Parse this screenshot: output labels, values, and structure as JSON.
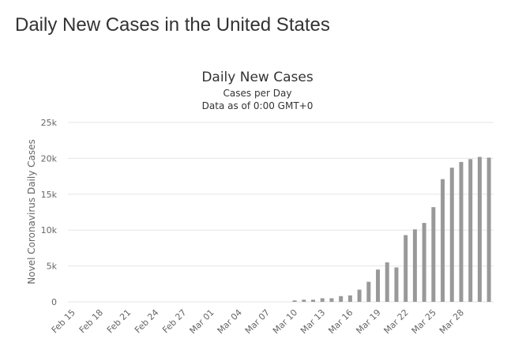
{
  "page": {
    "title": "Daily New Cases in the United States"
  },
  "chart_data": {
    "type": "bar",
    "title": "Daily New Cases",
    "subtitle_lines": [
      "Cases per Day",
      "Data as of 0:00 GMT+0"
    ],
    "xlabel": "",
    "ylabel": "Novel Coronavirus Daily Cases",
    "ylim": [
      0,
      25000
    ],
    "yticks": [
      0,
      5000,
      10000,
      15000,
      20000,
      25000
    ],
    "ytick_labels": [
      "0",
      "5k",
      "10k",
      "15k",
      "20k",
      "25k"
    ],
    "grid": true,
    "legend": "none",
    "bar_color": "#999999",
    "categories": [
      "Feb 15",
      "Feb 16",
      "Feb 17",
      "Feb 18",
      "Feb 19",
      "Feb 20",
      "Feb 21",
      "Feb 22",
      "Feb 23",
      "Feb 24",
      "Feb 25",
      "Feb 26",
      "Feb 27",
      "Feb 28",
      "Feb 29",
      "Mar 01",
      "Mar 02",
      "Mar 03",
      "Mar 04",
      "Mar 05",
      "Mar 06",
      "Mar 07",
      "Mar 08",
      "Mar 09",
      "Mar 10",
      "Mar 11",
      "Mar 12",
      "Mar 13",
      "Mar 14",
      "Mar 15",
      "Mar 16",
      "Mar 17",
      "Mar 18",
      "Mar 19",
      "Mar 20",
      "Mar 21",
      "Mar 22",
      "Mar 23",
      "Mar 24",
      "Mar 25",
      "Mar 26",
      "Mar 27",
      "Mar 28",
      "Mar 29",
      "Mar 30",
      "Mar 31"
    ],
    "xtick_labels": [
      "Feb 15",
      "",
      "",
      "Feb 18",
      "",
      "",
      "Feb 21",
      "",
      "",
      "Feb 24",
      "",
      "",
      "Feb 27",
      "",
      "",
      "Mar 01",
      "",
      "",
      "Mar 04",
      "",
      "",
      "Mar 07",
      "",
      "",
      "Mar 10",
      "",
      "",
      "Mar 13",
      "",
      "",
      "Mar 16",
      "",
      "",
      "Mar 19",
      "",
      "",
      "Mar 22",
      "",
      "",
      "Mar 25",
      "",
      "",
      "Mar 28",
      "",
      "",
      ""
    ],
    "values": [
      0,
      0,
      0,
      0,
      0,
      0,
      0,
      0,
      0,
      0,
      0,
      0,
      0,
      0,
      0,
      0,
      0,
      0,
      0,
      0,
      0,
      0,
      0,
      0,
      200,
      300,
      300,
      500,
      500,
      800,
      900,
      1700,
      2800,
      4500,
      5500,
      4800,
      9300,
      10100,
      11000,
      13200,
      17100,
      18700,
      19500,
      19900,
      20200,
      20100
    ]
  }
}
